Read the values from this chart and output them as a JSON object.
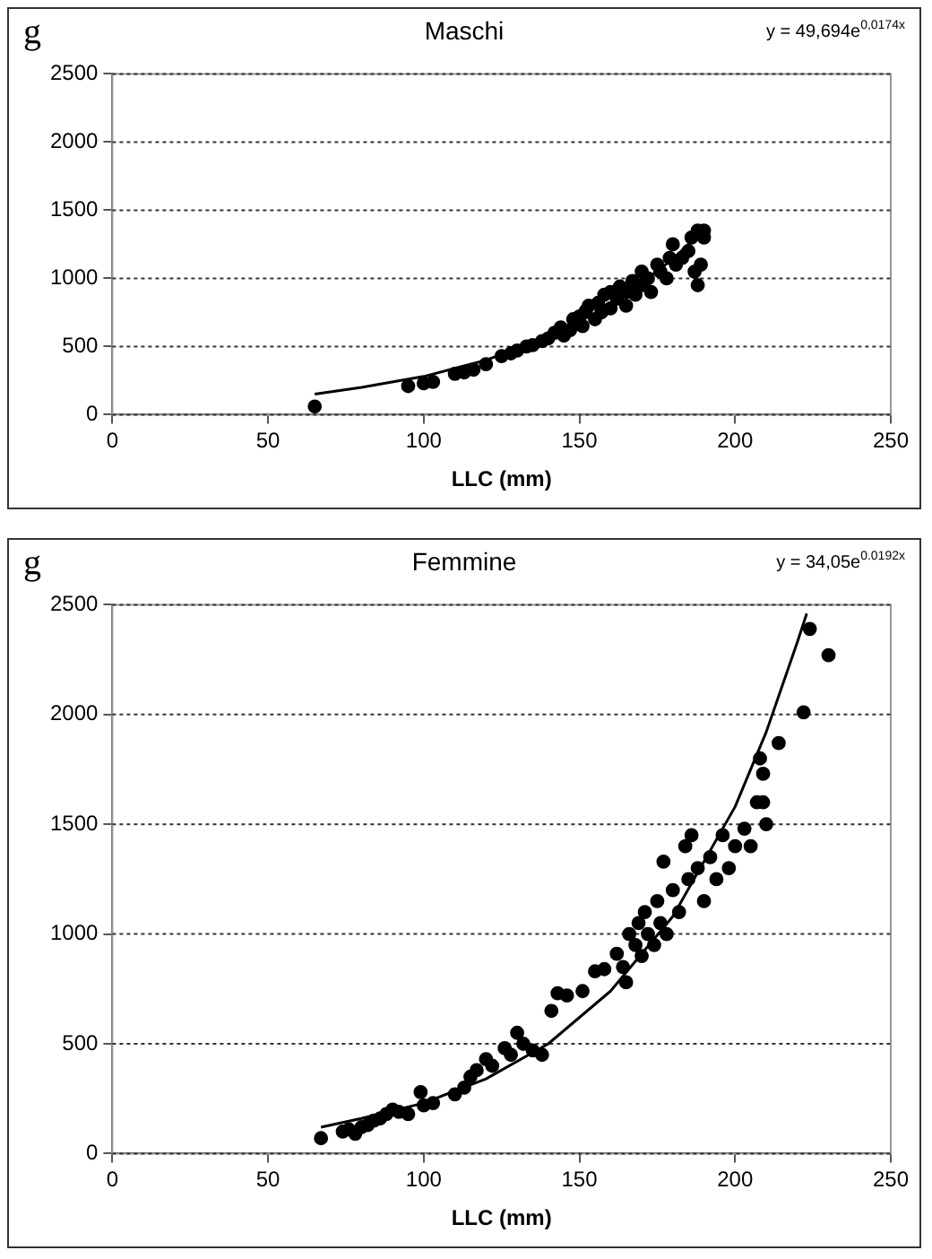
{
  "chart_data": [
    {
      "type": "scatter",
      "title": "Maschi",
      "xlabel": "LLC (mm)",
      "ylabel": "g",
      "annotations": [
        "y = 49,694e$^{0,0174x}$"
      ],
      "xlim": [
        0,
        250
      ],
      "xticks": [
        0,
        50,
        100,
        150,
        200,
        250
      ],
      "ylim": [
        0,
        2500
      ],
      "yticks": [
        0,
        500,
        1000,
        1500,
        2000,
        2500
      ],
      "grid": "y",
      "marker": "circle",
      "series": [
        {
          "color": "#000000",
          "x": [
            65,
            95,
            100,
            103,
            110,
            113,
            116,
            120,
            125,
            128,
            130,
            133,
            135,
            138,
            140,
            142,
            144,
            145,
            147,
            148,
            150,
            151,
            152,
            153,
            155,
            156,
            157,
            158,
            160,
            160,
            162,
            163,
            165,
            165,
            167,
            168,
            170,
            170,
            172,
            173,
            175,
            176,
            178,
            179,
            180,
            181,
            183,
            185,
            186,
            187,
            188,
            188,
            189,
            190,
            190
          ],
          "values": [
            60,
            210,
            230,
            240,
            300,
            310,
            330,
            370,
            430,
            450,
            470,
            500,
            510,
            540,
            560,
            600,
            640,
            580,
            620,
            700,
            720,
            650,
            760,
            800,
            700,
            820,
            750,
            880,
            900,
            780,
            850,
            940,
            900,
            800,
            980,
            880,
            1050,
            950,
            1000,
            900,
            1100,
            1050,
            1000,
            1150,
            1250,
            1100,
            1150,
            1200,
            1300,
            1050,
            950,
            1350,
            1100,
            1350,
            1300
          ]
        },
        {
          "type": "line",
          "marker": "none",
          "color": "#000000",
          "x": [
            65,
            80,
            100,
            120,
            140,
            160,
            180,
            190
          ],
          "values": [
            150,
            200,
            280,
            400,
            570,
            800,
            1140,
            1360
          ]
        }
      ]
    },
    {
      "type": "scatter",
      "title": "Femmine",
      "xlabel": "LLC (mm)",
      "ylabel": "g",
      "annotations": [
        "y = 34,05e$^{0.0192x}$"
      ],
      "xlim": [
        0,
        250
      ],
      "xticks": [
        0,
        50,
        100,
        150,
        200,
        250
      ],
      "ylim": [
        0,
        2500
      ],
      "yticks": [
        0,
        500,
        1000,
        1500,
        2000,
        2500
      ],
      "grid": "y",
      "marker": "circle",
      "series": [
        {
          "color": "#000000",
          "x": [
            67,
            74,
            76,
            78,
            80,
            82,
            84,
            86,
            88,
            90,
            92,
            95,
            99,
            100,
            103,
            110,
            113,
            115,
            117,
            120,
            122,
            126,
            128,
            130,
            132,
            135,
            138,
            141,
            143,
            146,
            151,
            155,
            158,
            162,
            164,
            165,
            166,
            168,
            169,
            170,
            171,
            172,
            174,
            175,
            176,
            177,
            178,
            180,
            182,
            184,
            185,
            186,
            188,
            190,
            192,
            194,
            196,
            198,
            200,
            203,
            205,
            207,
            208,
            209,
            209,
            210,
            214,
            222,
            224,
            230
          ],
          "values": [
            70,
            100,
            110,
            90,
            120,
            130,
            150,
            160,
            180,
            200,
            190,
            180,
            280,
            220,
            230,
            270,
            300,
            350,
            380,
            430,
            400,
            480,
            450,
            550,
            500,
            470,
            450,
            650,
            730,
            720,
            740,
            830,
            840,
            910,
            850,
            780,
            1000,
            950,
            1050,
            900,
            1100,
            1000,
            950,
            1150,
            1050,
            1330,
            1000,
            1200,
            1100,
            1400,
            1250,
            1450,
            1300,
            1150,
            1350,
            1250,
            1450,
            1300,
            1400,
            1480,
            1400,
            1600,
            1800,
            1730,
            1600,
            1500,
            1870,
            2010,
            2390,
            2270
          ]
        },
        {
          "type": "line",
          "marker": "none",
          "color": "#000000",
          "x": [
            67,
            80,
            100,
            120,
            140,
            160,
            180,
            200,
            210,
            220,
            223
          ],
          "values": [
            120,
            160,
            230,
            340,
            500,
            740,
            1080,
            1580,
            1920,
            2330,
            2460
          ]
        }
      ]
    }
  ]
}
